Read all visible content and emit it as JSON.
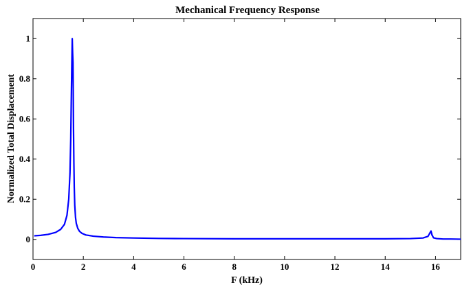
{
  "chart_data": {
    "type": "line",
    "title": "Mechanical Frequency Response",
    "xlabel": "F (kHz)",
    "ylabel": "Normalized Total Displacement",
    "xlim": [
      0,
      17
    ],
    "ylim": [
      -0.1,
      1.1
    ],
    "xticks": [
      0,
      2,
      4,
      6,
      8,
      10,
      12,
      14,
      16
    ],
    "yticks": [
      0,
      0.2,
      0.4,
      0.6,
      0.8,
      1
    ],
    "xtick_labels": [
      "0",
      "2",
      "4",
      "6",
      "8",
      "10",
      "12",
      "14",
      "16"
    ],
    "ytick_labels": [
      "0",
      "0.2",
      "0.4",
      "0.6",
      "0.8",
      "1"
    ],
    "grid": false,
    "line_color": "#0000ff",
    "series": [
      {
        "x": [
          0.05,
          0.3,
          0.6,
          0.9,
          1.1,
          1.25,
          1.35,
          1.42,
          1.47,
          1.5,
          1.52,
          1.54,
          1.56,
          1.575,
          1.59,
          1.6,
          1.61,
          1.625,
          1.64,
          1.66,
          1.69,
          1.72,
          1.78,
          1.85,
          1.95,
          2.1,
          2.4,
          2.8,
          3.3,
          4,
          5,
          6,
          8,
          10,
          12,
          14,
          15,
          15.5,
          15.7,
          15.78,
          15.82,
          15.86,
          15.92,
          16.05,
          16.3,
          16.6,
          17
        ],
        "y": [
          0.018,
          0.02,
          0.025,
          0.035,
          0.05,
          0.075,
          0.12,
          0.2,
          0.33,
          0.5,
          0.68,
          0.85,
          1.0,
          0.93,
          0.88,
          0.72,
          0.55,
          0.38,
          0.26,
          0.17,
          0.11,
          0.08,
          0.055,
          0.04,
          0.03,
          0.022,
          0.016,
          0.012,
          0.009,
          0.007,
          0.005,
          0.004,
          0.003,
          0.003,
          0.003,
          0.003,
          0.004,
          0.007,
          0.015,
          0.033,
          0.042,
          0.022,
          0.008,
          0.004,
          0.002,
          0.002,
          0.001
        ]
      }
    ]
  }
}
